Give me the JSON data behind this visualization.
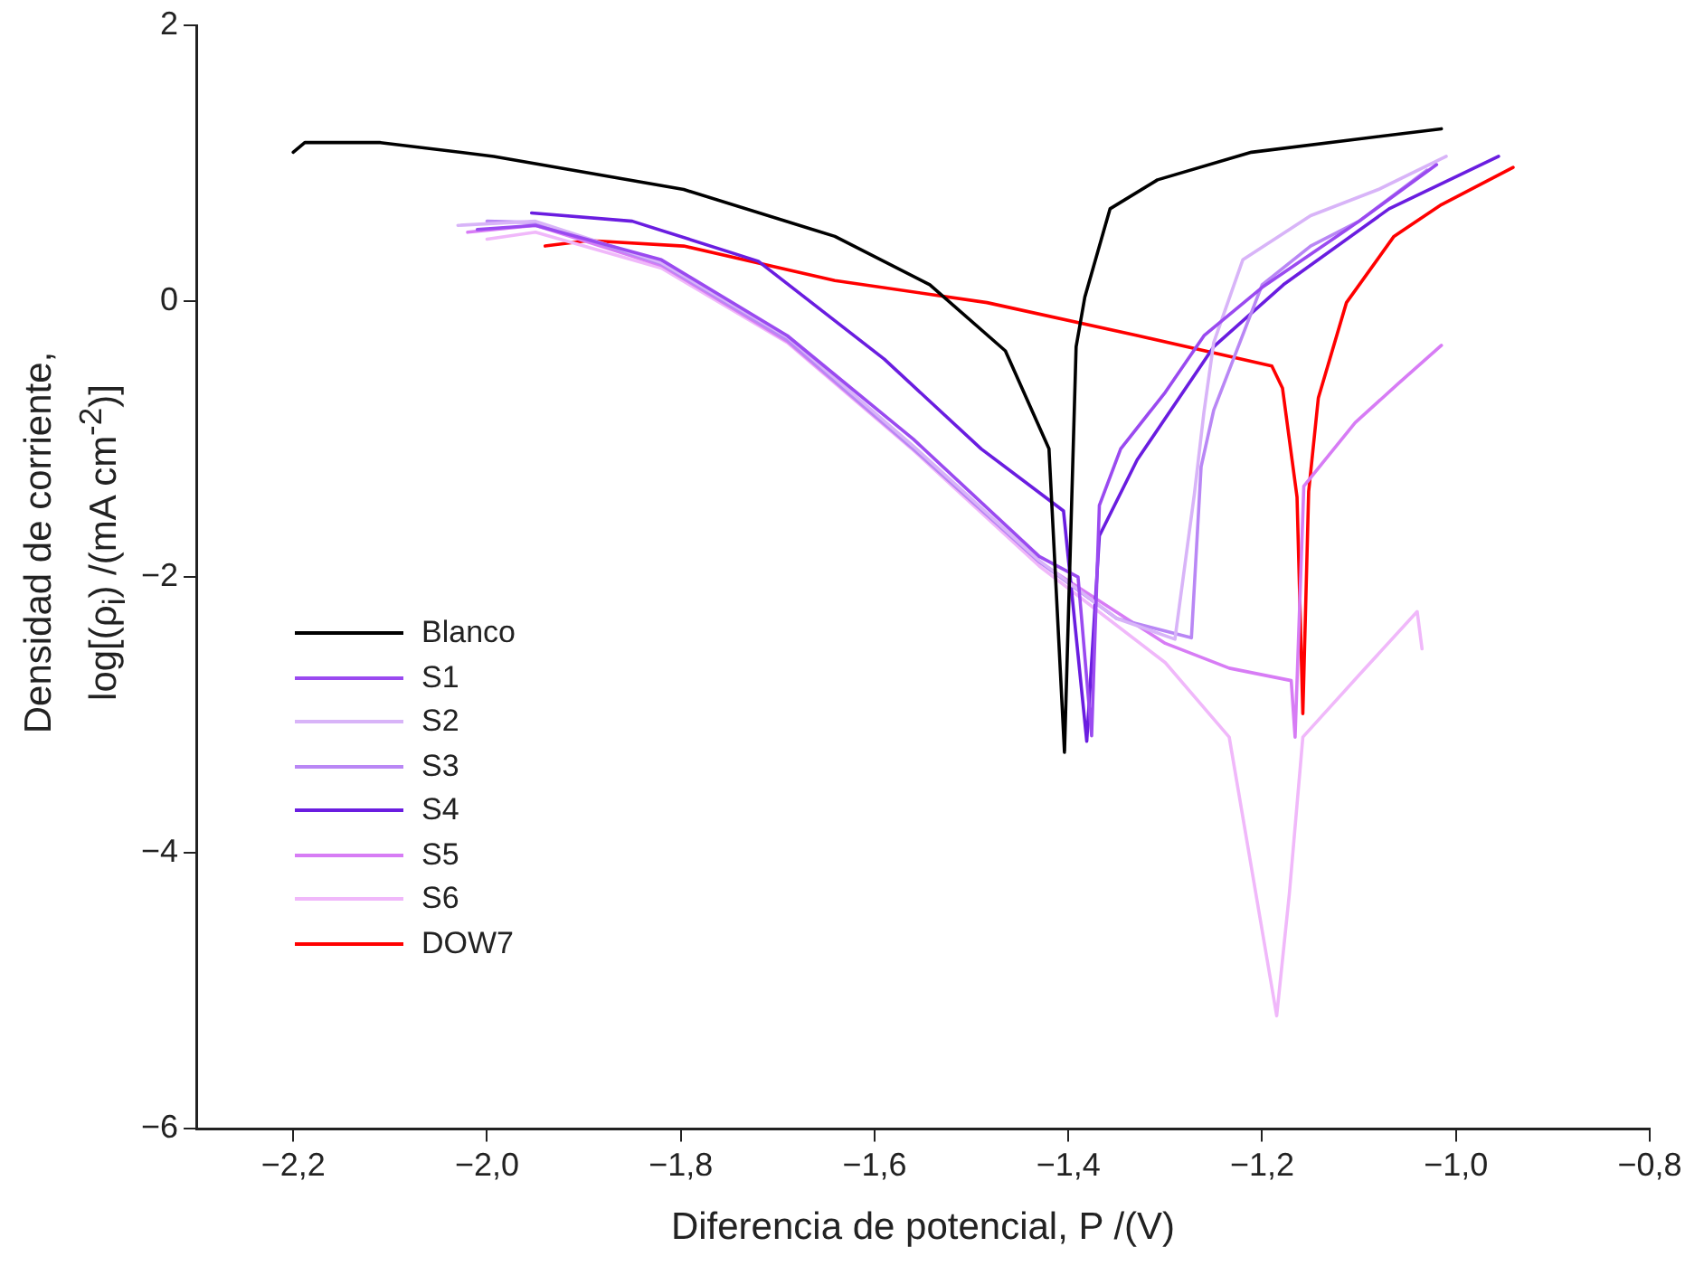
{
  "chart_data": {
    "type": "line",
    "xlabel": "Diferencia de potencial, P /(V)",
    "ylabel": "Densidad de corriente, log[(ρ$_{i}$) /(mA cm$^{-2}$)]",
    "xlim": [
      -2.3,
      -0.8
    ],
    "ylim": [
      -6,
      2
    ],
    "xticks": [
      {
        "value": -2.2,
        "label": "−2,2"
      },
      {
        "value": -2.0,
        "label": "−2,0"
      },
      {
        "value": -1.8,
        "label": "−1,8"
      },
      {
        "value": -1.6,
        "label": "−1,6"
      },
      {
        "value": -1.4,
        "label": "−1,4"
      },
      {
        "value": -1.2,
        "label": "−1,2"
      },
      {
        "value": -1.0,
        "label": "−1,0"
      },
      {
        "value": -0.8,
        "label": "−0,8"
      }
    ],
    "yticks": [
      {
        "value": -6,
        "label": "−6"
      },
      {
        "value": -4,
        "label": "−4"
      },
      {
        "value": -2,
        "label": "−2"
      },
      0,
      2
    ],
    "grid": false,
    "legend": "bottom left",
    "line_style": "solid",
    "marker": "none",
    "series": [
      {
        "name": "Blanco",
        "color": "#000000",
        "x": [
          -2.2,
          -2.188,
          -2.11,
          -1.993,
          -1.797,
          -1.641,
          -1.543,
          -1.465,
          -1.42,
          -1.404,
          -1.398,
          -1.392,
          -1.383,
          -1.357,
          -1.308,
          -1.211,
          -1.015
        ],
        "values": [
          1.08,
          1.15,
          1.15,
          1.05,
          0.81,
          0.47,
          0.12,
          -0.36,
          -1.07,
          -3.27,
          -1.8,
          -0.33,
          0.03,
          0.67,
          0.88,
          1.08,
          1.25
        ]
      },
      {
        "name": "S1",
        "color": "#9a4af0",
        "x": [
          -2.01,
          -1.95,
          -1.82,
          -1.69,
          -1.56,
          -1.43,
          -1.39,
          -1.376,
          -1.368,
          -1.346,
          -1.3,
          -1.26,
          -1.2,
          -1.1,
          -1.02
        ],
        "values": [
          0.52,
          0.55,
          0.3,
          -0.25,
          -1.0,
          -1.85,
          -2.0,
          -3.15,
          -1.48,
          -1.07,
          -0.66,
          -0.25,
          0.1,
          0.58,
          0.99
        ]
      },
      {
        "name": "S2",
        "color": "#d8b4f8",
        "x": [
          -2.03,
          -1.95,
          -1.82,
          -1.69,
          -1.56,
          -1.43,
          -1.35,
          -1.29,
          -1.27,
          -1.26,
          -1.25,
          -1.22,
          -1.15,
          -1.08,
          -1.01
        ],
        "values": [
          0.55,
          0.58,
          0.28,
          -0.26,
          -1.05,
          -1.88,
          -2.3,
          -2.45,
          -1.4,
          -0.8,
          -0.3,
          0.3,
          0.62,
          0.81,
          1.05
        ]
      },
      {
        "name": "S3",
        "color": "#b987f5",
        "x": [
          -2.0,
          -1.95,
          -1.82,
          -1.69,
          -1.56,
          -1.43,
          -1.35,
          -1.273,
          -1.263,
          -1.25,
          -1.2,
          -1.15,
          -1.1,
          -1.03
        ],
        "values": [
          0.58,
          0.57,
          0.27,
          -0.28,
          -1.07,
          -1.89,
          -2.3,
          -2.44,
          -1.2,
          -0.79,
          0.12,
          0.4,
          0.58,
          0.95
        ]
      },
      {
        "name": "S4",
        "color": "#6a1de0",
        "x": [
          -1.954,
          -1.85,
          -1.72,
          -1.59,
          -1.49,
          -1.405,
          -1.381,
          -1.368,
          -1.329,
          -1.25,
          -1.178,
          -1.069,
          -0.956
        ],
        "values": [
          0.64,
          0.58,
          0.29,
          -0.42,
          -1.07,
          -1.52,
          -3.19,
          -1.7,
          -1.15,
          -0.33,
          0.12,
          0.67,
          1.05
        ]
      },
      {
        "name": "S5",
        "color": "#d77cf5",
        "x": [
          -2.02,
          -1.95,
          -1.82,
          -1.69,
          -1.56,
          -1.43,
          -1.34,
          -1.3,
          -1.234,
          -1.17,
          -1.166,
          -1.157,
          -1.104,
          -1.06,
          -1.015
        ],
        "values": [
          0.5,
          0.55,
          0.26,
          -0.29,
          -1.07,
          -1.89,
          -2.3,
          -2.48,
          -2.66,
          -2.75,
          -3.16,
          -1.34,
          -0.88,
          -0.6,
          -0.32
        ]
      },
      {
        "name": "S6",
        "color": "#f0b8fa",
        "x": [
          -2.0,
          -1.95,
          -1.82,
          -1.69,
          -1.56,
          -1.43,
          -1.3,
          -1.234,
          -1.185,
          -1.172,
          -1.158,
          -1.1,
          -1.04,
          -1.035
        ],
        "values": [
          0.45,
          0.5,
          0.24,
          -0.3,
          -1.08,
          -1.92,
          -2.62,
          -3.16,
          -5.18,
          -4.3,
          -3.16,
          -2.71,
          -2.25,
          -2.52
        ]
      },
      {
        "name": "DOW7",
        "color": "#ff0000",
        "x": [
          -1.94,
          -1.895,
          -1.797,
          -1.641,
          -1.484,
          -1.328,
          -1.19,
          -1.179,
          -1.164,
          -1.158,
          -1.152,
          -1.142,
          -1.113,
          -1.064,
          -1.015,
          -0.941
        ],
        "values": [
          0.4,
          0.44,
          0.4,
          0.15,
          -0.01,
          -0.25,
          -0.47,
          -0.63,
          -1.42,
          -2.99,
          -1.38,
          -0.7,
          -0.01,
          0.47,
          0.7,
          0.97
        ]
      }
    ]
  }
}
